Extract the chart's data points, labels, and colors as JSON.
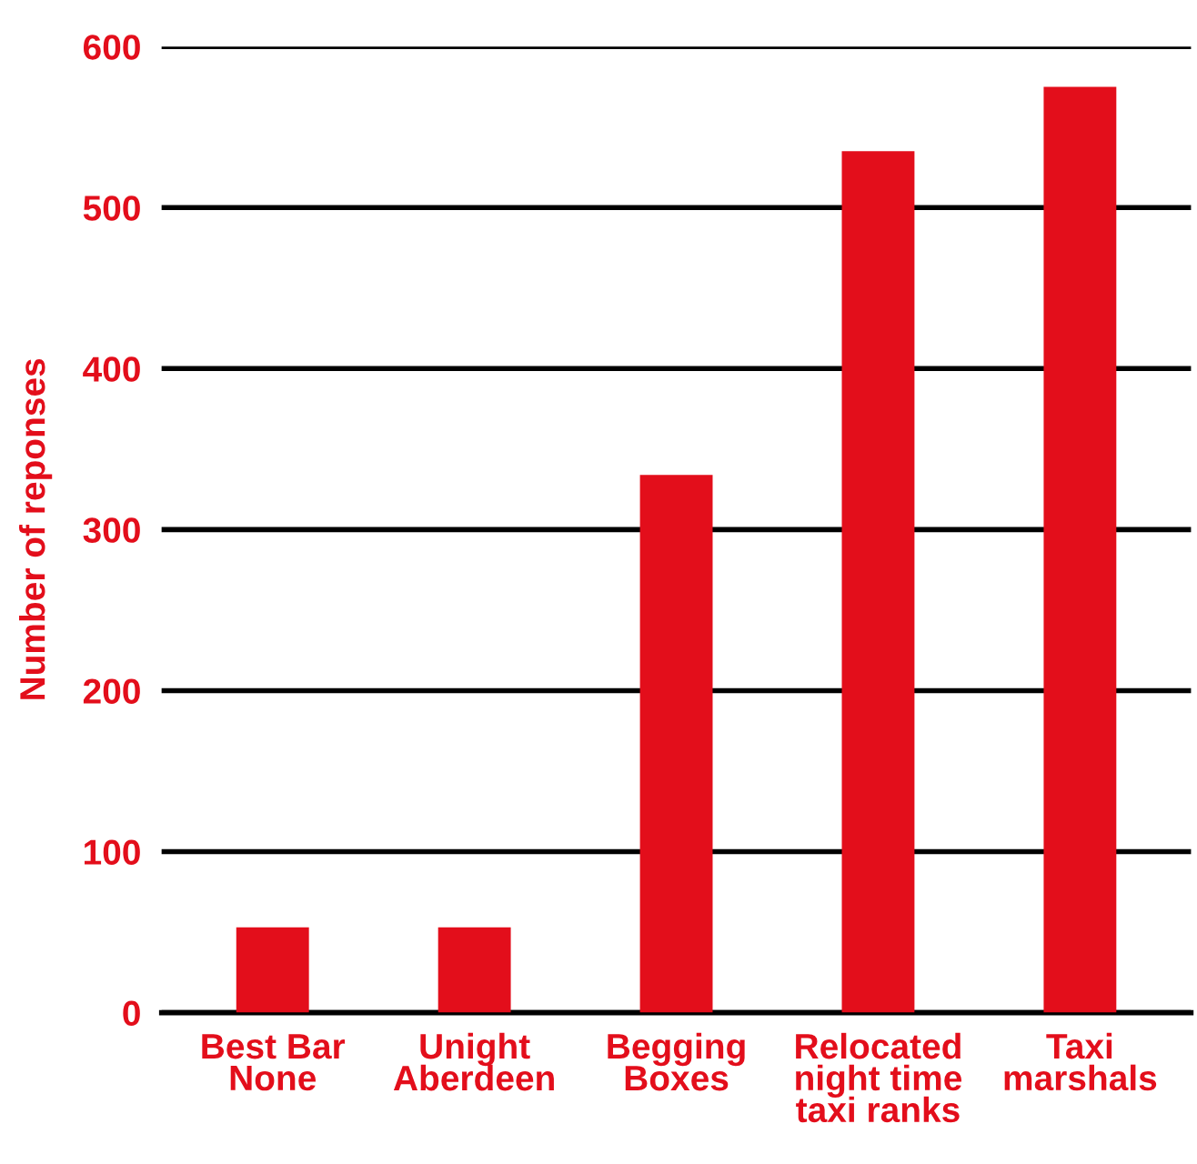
{
  "chart_data": {
    "type": "bar",
    "ylabel": "Number of reponses",
    "categories": [
      "Best Bar\nNone",
      "Unight\nAberdeen",
      "Begging\nBoxes",
      "Relocated\nnight time\ntaxi ranks",
      "Taxi\nmarshals"
    ],
    "values": [
      53,
      53,
      334,
      535,
      575
    ],
    "color": "#e30e1b",
    "ylim": [
      0,
      600
    ],
    "yticks": [
      0,
      100,
      200,
      300,
      400,
      500,
      600
    ],
    "grid": "y"
  }
}
